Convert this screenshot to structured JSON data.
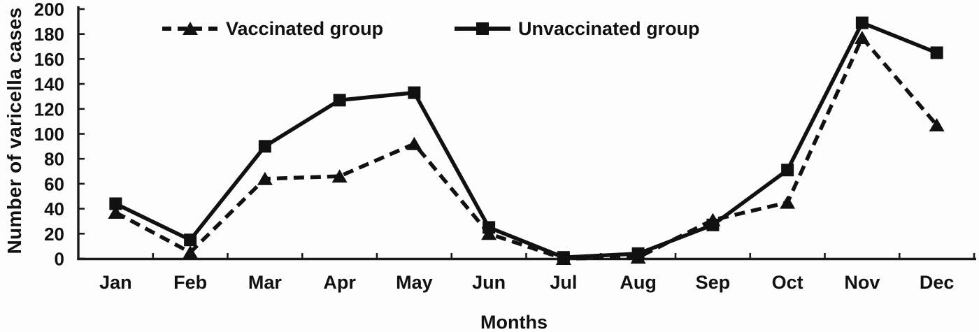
{
  "chart_data": {
    "type": "line",
    "title": "",
    "xlabel": "Months",
    "ylabel": "Number of varicella cases",
    "categories": [
      "Jan",
      "Feb",
      "Mar",
      "Apr",
      "May",
      "Jun",
      "Jul",
      "Aug",
      "Sep",
      "Oct",
      "Nov",
      "Dec"
    ],
    "series": [
      {
        "name": "Vaccinated group",
        "key": "vaccinated",
        "line_style": "dashed",
        "marker": "triangle",
        "color": "#111111",
        "values": [
          37,
          5,
          64,
          66,
          92,
          20,
          0,
          1,
          31,
          45,
          177,
          107
        ]
      },
      {
        "name": "Unvaccinated group",
        "key": "unvaccinated",
        "line_style": "solid",
        "marker": "square",
        "color": "#111111",
        "values": [
          44,
          15,
          90,
          127,
          133,
          25,
          1,
          4,
          27,
          71,
          189,
          165
        ]
      }
    ],
    "ylim": [
      0,
      200
    ],
    "yticks": [
      0,
      20,
      40,
      60,
      80,
      100,
      120,
      140,
      160,
      180,
      200
    ],
    "grid": false,
    "legend_position": "top-center",
    "axis_color": "#1a1a1a"
  }
}
